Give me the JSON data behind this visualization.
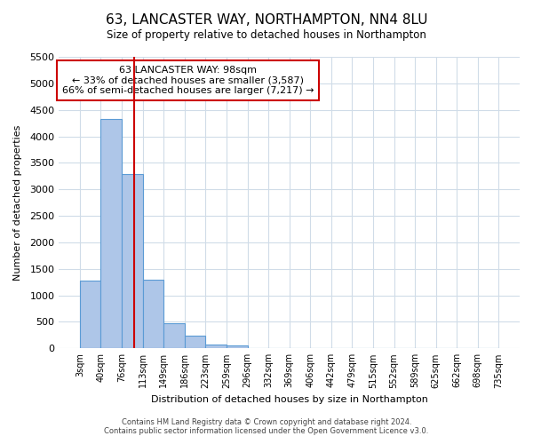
{
  "title": "63, LANCASTER WAY, NORTHAMPTON, NN4 8LU",
  "subtitle": "Size of property relative to detached houses in Northampton",
  "xlabel": "Distribution of detached houses by size in Northampton",
  "ylabel": "Number of detached properties",
  "bin_labels": [
    "3sqm",
    "40sqm",
    "76sqm",
    "113sqm",
    "149sqm",
    "186sqm",
    "223sqm",
    "259sqm",
    "296sqm",
    "332sqm",
    "369sqm",
    "406sqm",
    "442sqm",
    "479sqm",
    "515sqm",
    "552sqm",
    "589sqm",
    "625sqm",
    "662sqm",
    "698sqm",
    "735sqm"
  ],
  "bar_values": [
    1270,
    4330,
    3290,
    1290,
    480,
    240,
    75,
    50,
    0,
    0,
    0,
    0,
    0,
    0,
    0,
    0,
    0,
    0,
    0,
    0
  ],
  "bar_color": "#aec6e8",
  "bar_edge_color": "#5b9bd5",
  "property_line_x": 2,
  "property_line_color": "#cc0000",
  "annotation_box_text": "63 LANCASTER WAY: 98sqm\n← 33% of detached houses are smaller (3,587)\n66% of semi-detached houses are larger (7,217) →",
  "annotation_box_color": "#cc0000",
  "ylim": [
    0,
    5500
  ],
  "yticks": [
    0,
    500,
    1000,
    1500,
    2000,
    2500,
    3000,
    3500,
    4000,
    4500,
    5000,
    5500
  ],
  "footer_line1": "Contains HM Land Registry data © Crown copyright and database right 2024.",
  "footer_line2": "Contains public sector information licensed under the Open Government Licence v3.0.",
  "grid_color": "#d0dce8",
  "background_color": "#ffffff",
  "fig_width": 6.0,
  "fig_height": 5.0
}
